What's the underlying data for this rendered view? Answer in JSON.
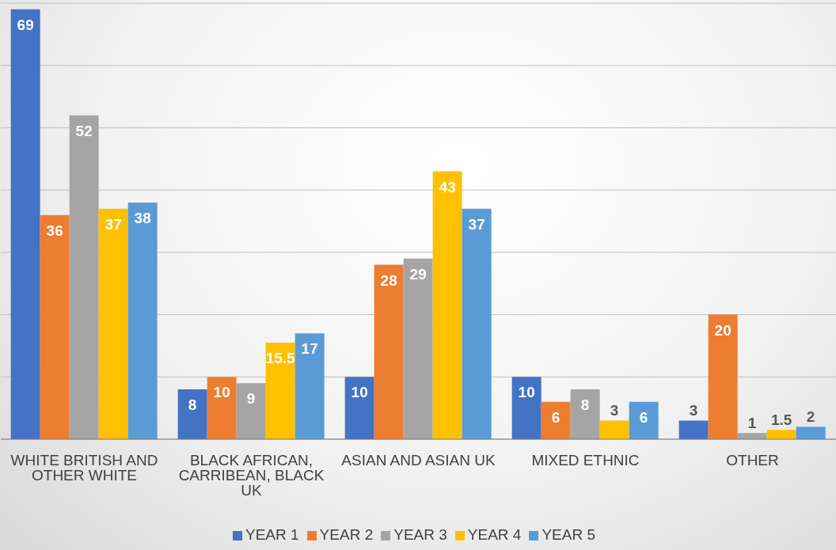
{
  "chart_data": {
    "type": "bar",
    "categories": [
      "WHITE BRITISH AND OTHER WHITE",
      "BLACK AFRICAN, CARRIBEAN, BLACK UK",
      "ASIAN AND ASIAN UK",
      "MIXED ETHNIC",
      "OTHER"
    ],
    "series": [
      {
        "name": "YEAR 1",
        "color": "#4472c4",
        "values": [
          69,
          8,
          10,
          10,
          3
        ]
      },
      {
        "name": "YEAR 2",
        "color": "#ed7d31",
        "values": [
          36,
          10,
          28,
          6,
          20
        ]
      },
      {
        "name": "YEAR 3",
        "color": "#a5a5a5",
        "values": [
          52,
          9,
          29,
          8,
          1
        ]
      },
      {
        "name": "YEAR 4",
        "color": "#ffc000",
        "values": [
          37,
          15.5,
          43,
          3,
          1.5
        ]
      },
      {
        "name": "YEAR 5",
        "color": "#5b9bd5",
        "values": [
          38,
          17,
          37,
          6,
          2
        ]
      }
    ],
    "tick_labels": "x",
    "grid": "y",
    "legend": "bottom",
    "data_labels": true
  }
}
